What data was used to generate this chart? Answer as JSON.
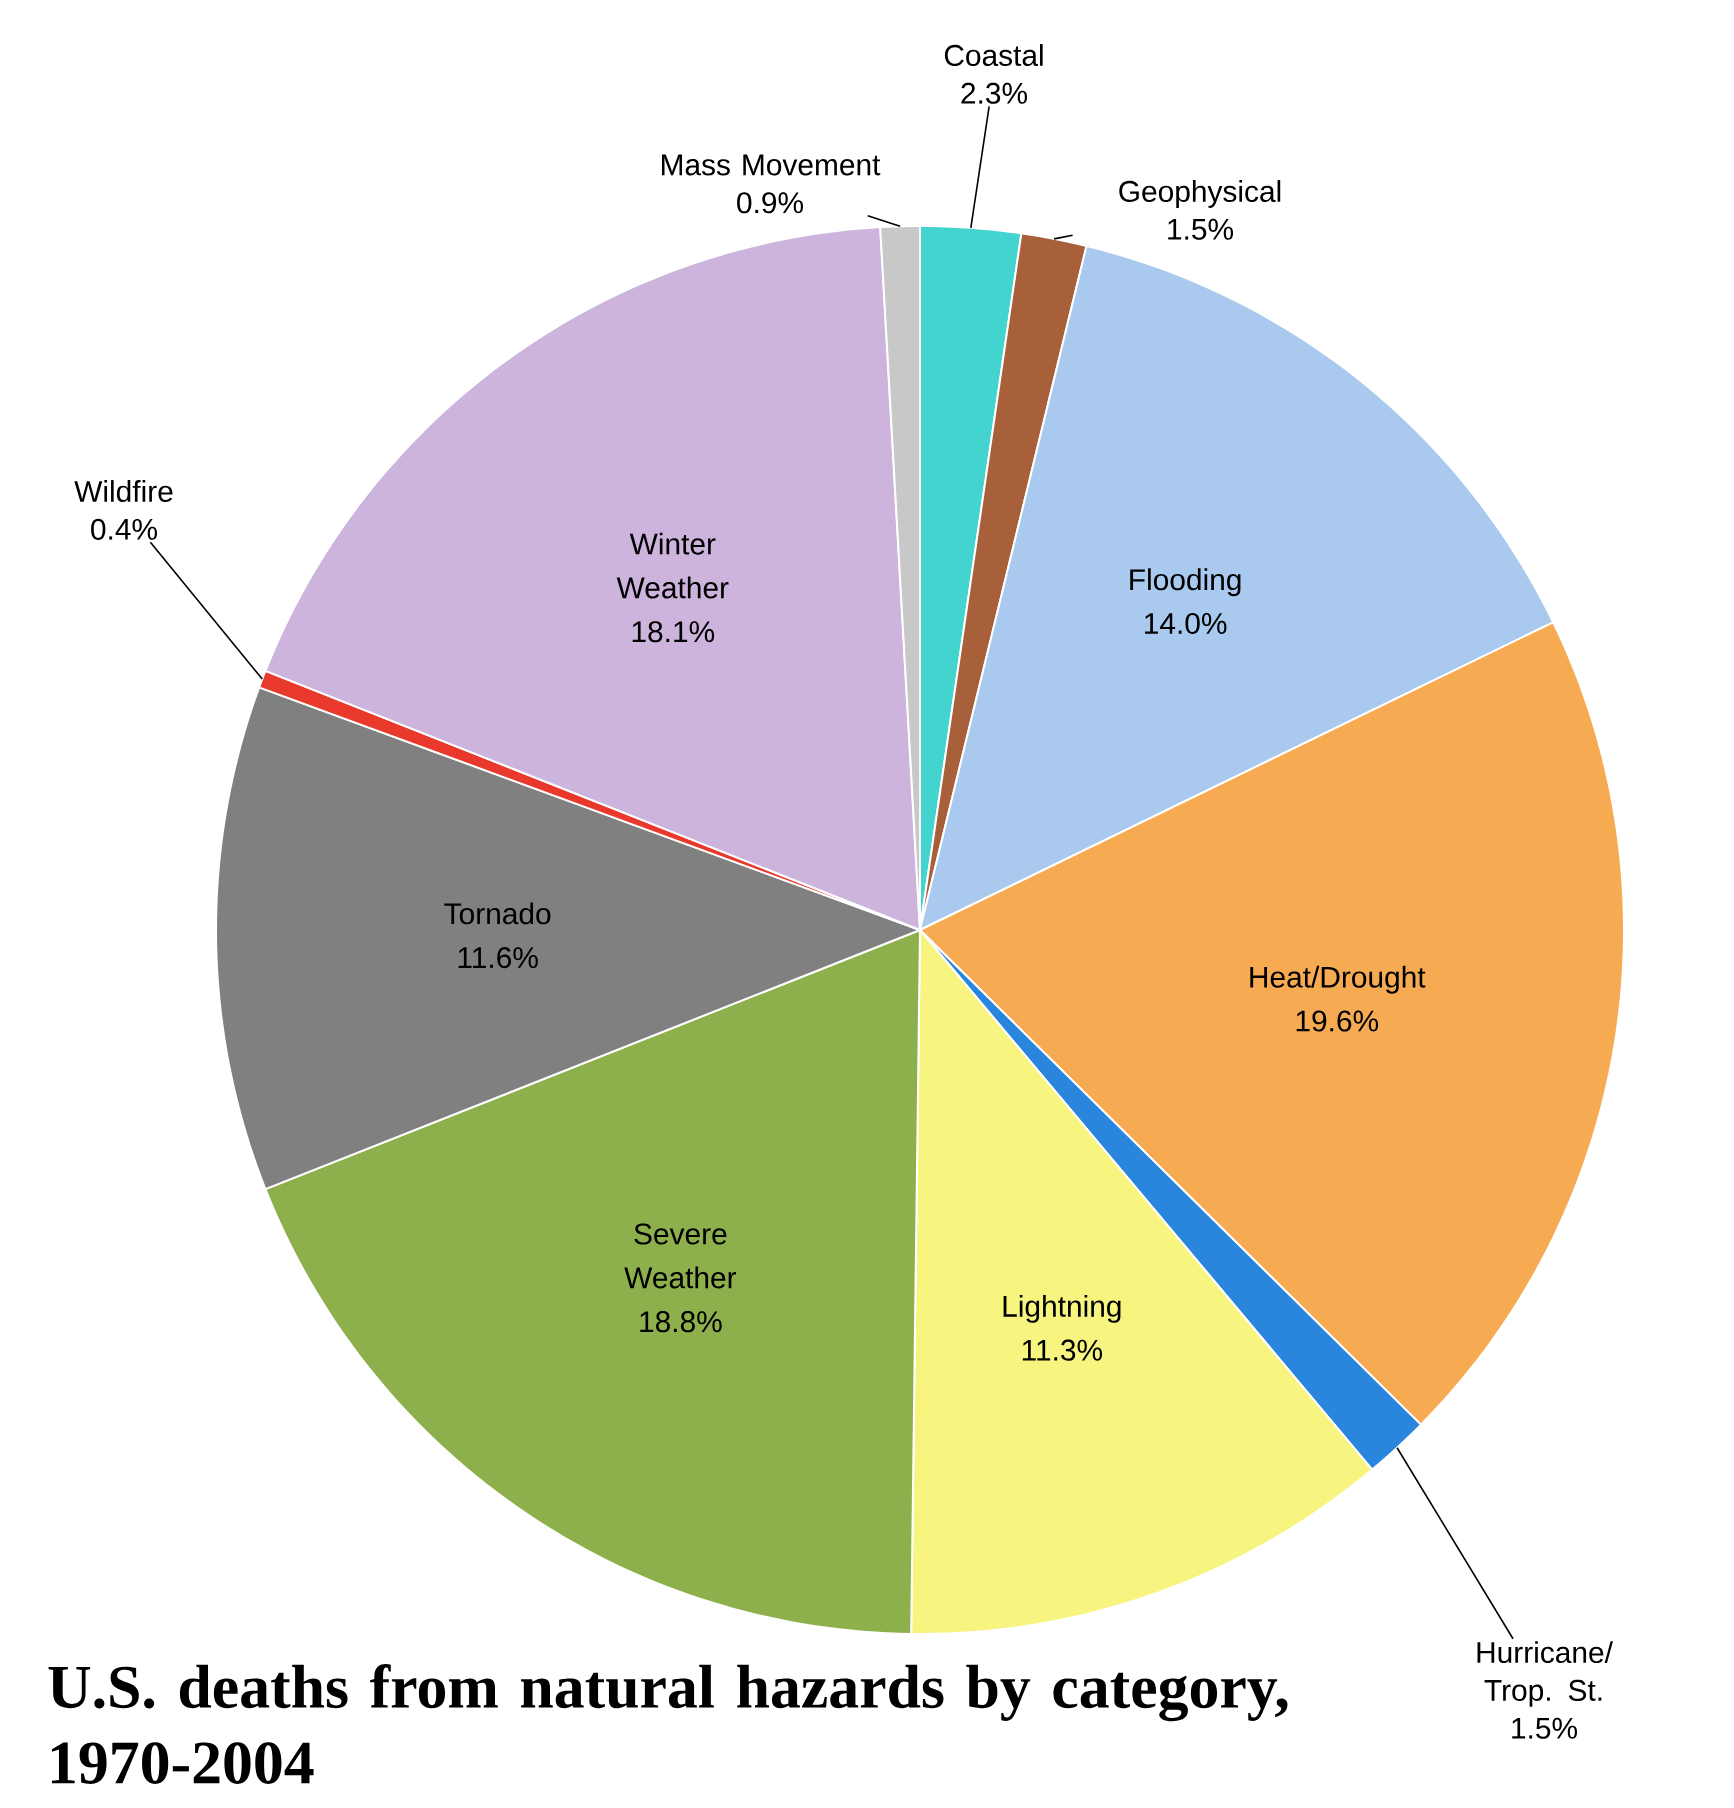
{
  "chart_data": {
    "type": "pie",
    "title": "U.S. deaths from natural hazards by category, 1970-2004",
    "categories": [
      "Coastal",
      "Geophysical",
      "Flooding",
      "Heat/Drought",
      "Hurricane/ Trop. St.",
      "Lightning",
      "Severe Weather",
      "Tornado",
      "Wildfire",
      "Winter Weather",
      "Mass Movement"
    ],
    "values": [
      2.3,
      1.5,
      14.0,
      19.6,
      1.5,
      11.3,
      18.8,
      11.6,
      0.4,
      18.1,
      0.9
    ],
    "value_labels": [
      "2.3%",
      "1.5%",
      "14.0%",
      "19.6%",
      "1.5%",
      "11.3%",
      "18.8%",
      "11.6%",
      "0.4%",
      "18.1%",
      "0.9%"
    ],
    "colors": [
      "#44d4cf",
      "#a8603a",
      "#a9c9ee",
      "#f6aa52",
      "#2a85dc",
      "#f7f47f",
      "#8db04c",
      "#808080",
      "#e8392c",
      "#ccb4dd",
      "#c8c8c8"
    ]
  }
}
